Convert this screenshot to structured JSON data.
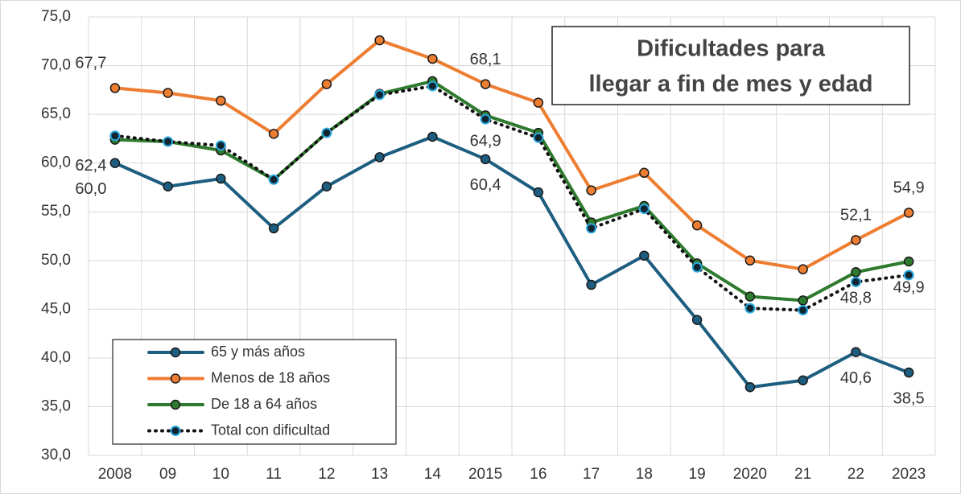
{
  "chart_data": {
    "type": "line",
    "title": [
      "Dificultades para",
      "llegar a fin de mes y edad"
    ],
    "categories": [
      "2008",
      "09",
      "10",
      "11",
      "12",
      "13",
      "14",
      "2015",
      "16",
      "17",
      "18",
      "19",
      "2020",
      "21",
      "22",
      "2023"
    ],
    "series": [
      {
        "name": "65 y más años",
        "color": "#1d5e80",
        "marker_fill": "#1d5e80",
        "values": [
          60.0,
          57.6,
          58.4,
          53.3,
          57.6,
          60.6,
          62.7,
          60.4,
          57.0,
          47.5,
          50.5,
          43.9,
          37.0,
          37.7,
          40.6,
          38.5
        ],
        "value_labels": [
          "60,0",
          null,
          null,
          null,
          null,
          null,
          null,
          "60,4",
          null,
          null,
          null,
          null,
          null,
          null,
          "40,6",
          "38,5"
        ]
      },
      {
        "name": "Menos de 18 años",
        "color": "#ed7d31",
        "marker_fill": "#ed7d31",
        "values": [
          67.7,
          67.2,
          66.4,
          63.0,
          68.1,
          72.6,
          70.7,
          68.1,
          66.2,
          57.2,
          59.0,
          53.6,
          50.0,
          49.1,
          52.1,
          54.9
        ],
        "value_labels": [
          "67,7",
          null,
          null,
          null,
          null,
          null,
          null,
          "68,1",
          null,
          null,
          null,
          null,
          null,
          null,
          "52,1",
          "54,9"
        ]
      },
      {
        "name": "De 18 a 64 años",
        "color": "#2e7a2e",
        "marker_fill": "#2e7a2e",
        "values": [
          62.4,
          62.2,
          61.3,
          58.3,
          63.1,
          67.1,
          68.4,
          64.9,
          63.1,
          53.9,
          55.6,
          49.7,
          46.3,
          45.9,
          48.8,
          49.9
        ],
        "value_labels": [
          "62,4",
          null,
          null,
          null,
          null,
          null,
          null,
          "64,9",
          null,
          null,
          null,
          null,
          null,
          null,
          "48,8",
          "49,9"
        ]
      },
      {
        "name": "Total con dificultad",
        "color": "#111111",
        "marker_fill": "#10252f",
        "marker_edge": "#2aa8e0",
        "line_style": "dotted",
        "values": [
          62.8,
          62.2,
          61.8,
          58.3,
          63.1,
          67.0,
          67.9,
          64.5,
          62.6,
          53.3,
          55.3,
          49.3,
          45.1,
          44.9,
          47.8,
          48.5
        ]
      }
    ],
    "ylim": [
      30,
      75
    ],
    "yticks": [
      {
        "value": 30,
        "label": "30,0"
      },
      {
        "value": 35,
        "label": "35,0"
      },
      {
        "value": 40,
        "label": "40,0"
      },
      {
        "value": 45,
        "label": "45,0"
      },
      {
        "value": 50,
        "label": "50,0"
      },
      {
        "value": 55,
        "label": "55,0"
      },
      {
        "value": 60,
        "label": "60,0"
      },
      {
        "value": 65,
        "label": "65,0"
      },
      {
        "value": 70,
        "label": "70,0"
      },
      {
        "value": 75,
        "label": "75,0"
      }
    ],
    "grid": true,
    "legend": "lower left"
  }
}
